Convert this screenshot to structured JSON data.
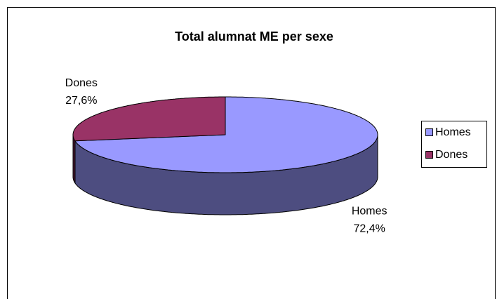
{
  "chart_data": {
    "type": "pie",
    "title": "Total alumnat ME per sexe",
    "categories": [
      "Homes",
      "Dones"
    ],
    "values": [
      72.4,
      27.6
    ],
    "value_labels": [
      "72,4%",
      "27,6%"
    ],
    "colors": [
      "#9999ff",
      "#993366"
    ],
    "side_colors": [
      "#4d4d80",
      "#4d1a33"
    ],
    "legend": "right"
  }
}
